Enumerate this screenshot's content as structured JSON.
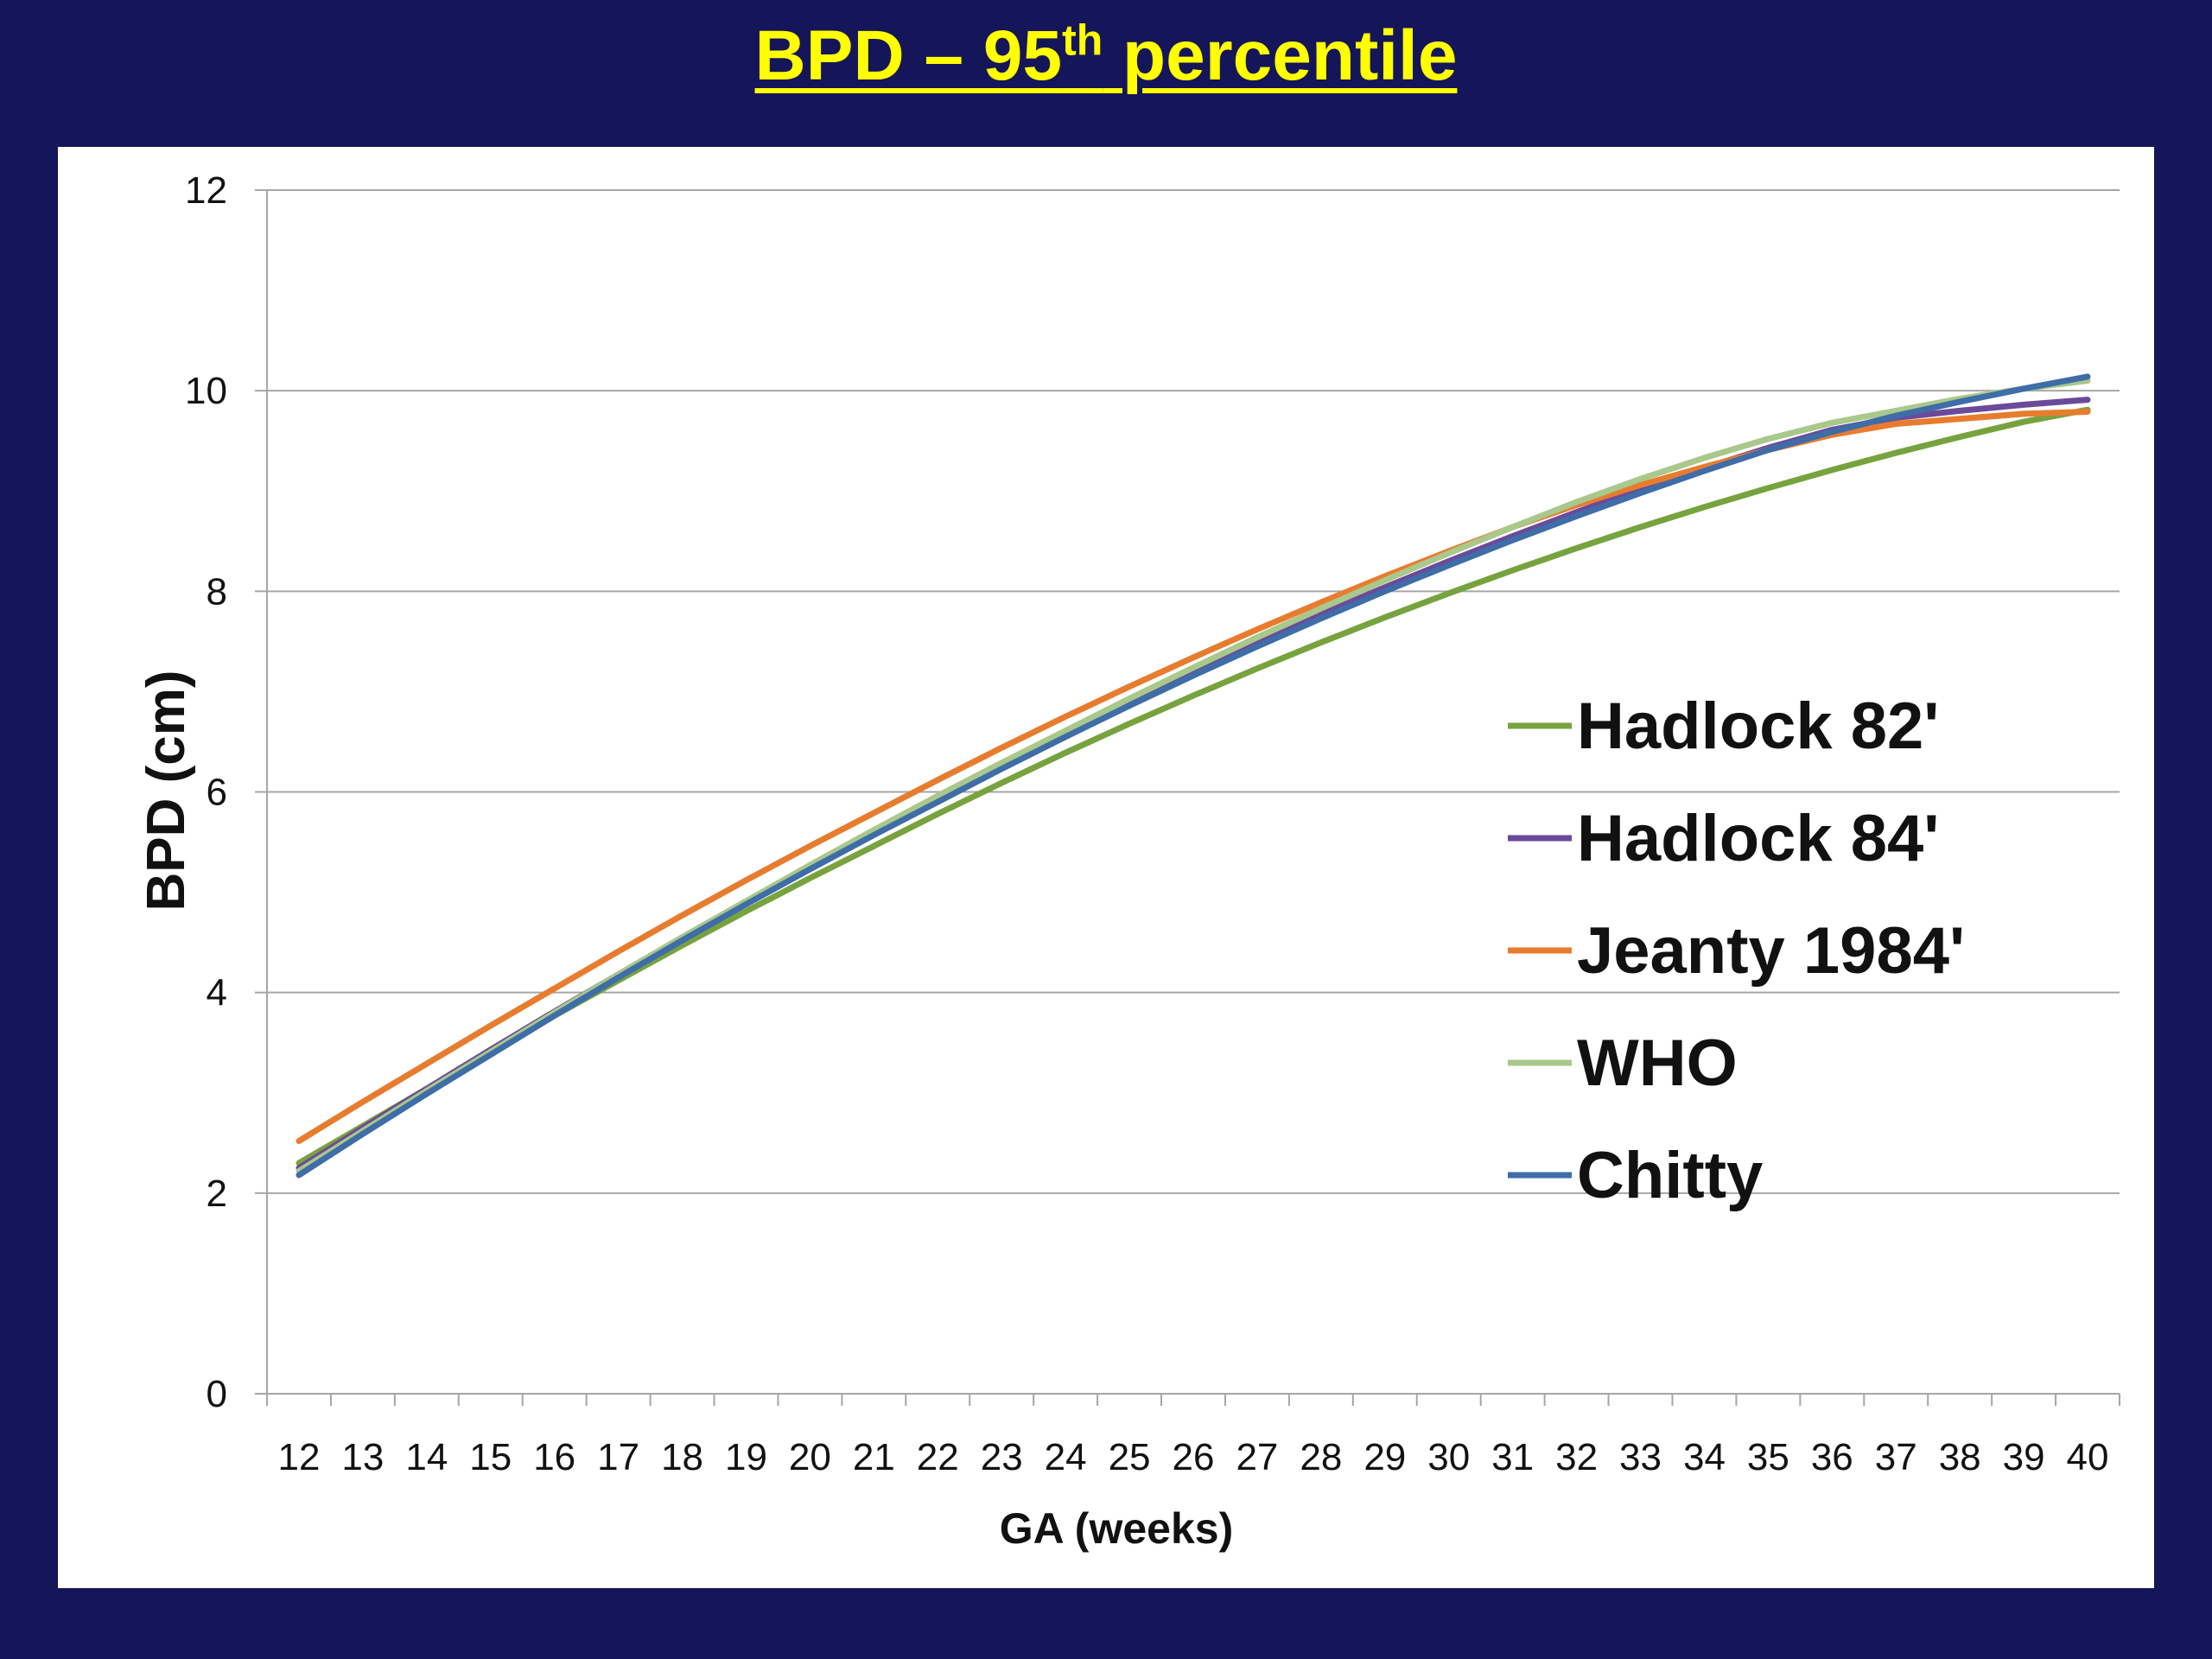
{
  "title": {
    "main": "BPD – 95",
    "superscript": "th",
    "suffix": " percentile",
    "color": "#ffff00"
  },
  "colors": {
    "background": "#15155a",
    "panel": "#ffffff",
    "grid": "#a6a6a6"
  },
  "chart_data": {
    "type": "line",
    "xlabel": "GA (weeks)",
    "ylabel": "BPD (cm)",
    "xlim": [
      12,
      40
    ],
    "ylim": [
      0,
      12
    ],
    "y_ticks": [
      0,
      2,
      4,
      6,
      8,
      10,
      12
    ],
    "x": [
      12,
      13,
      14,
      15,
      16,
      17,
      18,
      19,
      20,
      21,
      22,
      23,
      24,
      25,
      26,
      27,
      28,
      29,
      30,
      31,
      32,
      33,
      34,
      35,
      36,
      37,
      38,
      39,
      40
    ],
    "grid": true,
    "legend_position": "right",
    "series": [
      {
        "name": "Hadlock 82'",
        "color": "#77a33e",
        "values": [
          2.3,
          2.67,
          3.04,
          3.41,
          3.77,
          4.12,
          4.47,
          4.81,
          5.14,
          5.46,
          5.78,
          6.09,
          6.39,
          6.68,
          6.96,
          7.23,
          7.49,
          7.74,
          7.98,
          8.21,
          8.43,
          8.64,
          8.84,
          9.03,
          9.21,
          9.38,
          9.54,
          9.69,
          9.81
        ]
      },
      {
        "name": "Hadlock 84'",
        "color": "#6c4a9a",
        "values": [
          2.25,
          2.65,
          3.04,
          3.43,
          3.81,
          4.18,
          4.55,
          4.91,
          5.26,
          5.6,
          5.94,
          6.27,
          6.59,
          6.9,
          7.2,
          7.49,
          7.77,
          8.04,
          8.3,
          8.55,
          8.79,
          9.02,
          9.23,
          9.43,
          9.61,
          9.73,
          9.8,
          9.86,
          9.91
        ]
      },
      {
        "name": "Jeanty 1984'",
        "color": "#e87c2e",
        "values": [
          2.52,
          2.91,
          3.29,
          3.67,
          4.04,
          4.41,
          4.77,
          5.12,
          5.46,
          5.79,
          6.12,
          6.44,
          6.75,
          7.05,
          7.34,
          7.62,
          7.89,
          8.15,
          8.4,
          8.64,
          8.86,
          9.06,
          9.24,
          9.41,
          9.56,
          9.67,
          9.72,
          9.77,
          9.79
        ]
      },
      {
        "name": "WHO",
        "color": "#a9c88b",
        "values": [
          2.22,
          2.62,
          3.02,
          3.41,
          3.8,
          4.18,
          4.55,
          4.91,
          5.27,
          5.62,
          5.96,
          6.29,
          6.61,
          6.93,
          7.24,
          7.54,
          7.83,
          8.11,
          8.38,
          8.64,
          8.89,
          9.12,
          9.33,
          9.52,
          9.68,
          9.8,
          9.92,
          10.02,
          10.1
        ]
      },
      {
        "name": "Chitty",
        "color": "#3e6da8",
        "values": [
          2.18,
          2.59,
          2.99,
          3.38,
          3.77,
          4.15,
          4.52,
          4.88,
          5.23,
          5.57,
          5.9,
          6.23,
          6.55,
          6.86,
          7.16,
          7.45,
          7.73,
          8.0,
          8.26,
          8.51,
          8.75,
          8.98,
          9.2,
          9.41,
          9.59,
          9.75,
          9.89,
          10.02,
          10.14
        ]
      }
    ]
  }
}
